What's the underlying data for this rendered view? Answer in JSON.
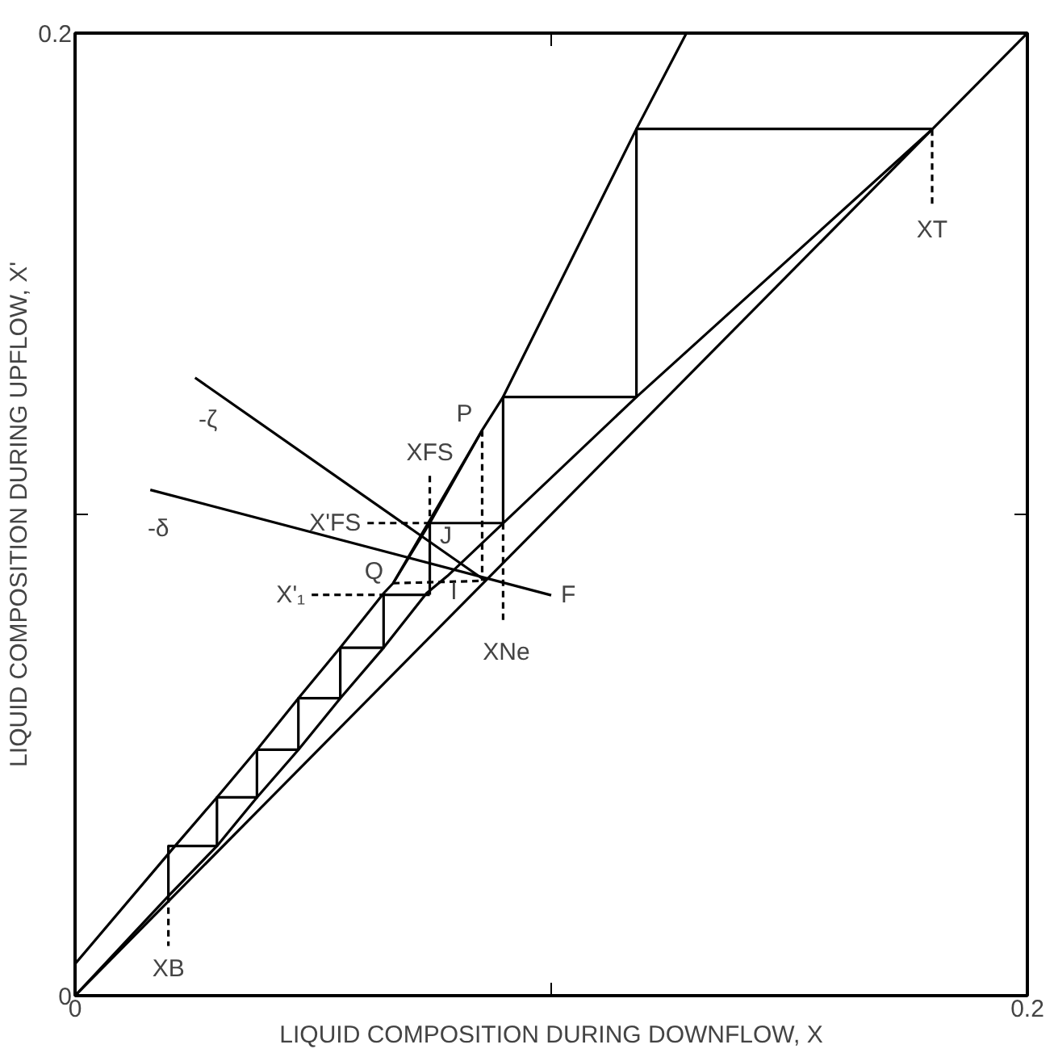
{
  "chart_data": {
    "type": "line",
    "xlabel": "LIQUID COMPOSITION DURING DOWNFLOW, X",
    "ylabel": "LIQUID COMPOSITION DURING UPFLOW, X'",
    "xlim": [
      0,
      0.2
    ],
    "ylim": [
      0,
      0.2
    ],
    "xticks": [
      0,
      {
        "value": 0.1,
        "label": null
      },
      {
        "value": 0.2,
        "label": "0.2"
      }
    ],
    "yticks": [
      0,
      {
        "value": 0.1,
        "label": null
      },
      {
        "value": 0.2,
        "label": "0.2"
      }
    ],
    "grid": false,
    "series": [
      {
        "color": "#000000",
        "x": [
          0,
          0.2
        ],
        "values": [
          0,
          0.2
        ]
      },
      {
        "color": "#000000",
        "x": [
          0,
          0.0196,
          0.0298,
          0.0382,
          0.0469,
          0.0557,
          0.0648,
          0.0738,
          0.0782,
          0.1179,
          0.18
        ],
        "values": [
          0,
          0.0207,
          0.0311,
          0.0412,
          0.0511,
          0.0618,
          0.0723,
          0.0836,
          0.0872,
          0.1244,
          0.18
        ]
      },
      {
        "color": "#000000",
        "x": [
          0,
          0.021,
          0.0298,
          0.0382,
          0.0469,
          0.0557,
          0.0648,
          0.0668,
          0.0745,
          0.0855,
          0.0899,
          0.1179,
          0.1284
        ],
        "values": [
          0.0066,
          0.0311,
          0.0412,
          0.0511,
          0.0618,
          0.0723,
          0.0836,
          0.0857,
          0.0982,
          0.1175,
          0.1244,
          0.1801,
          0.2
        ]
      },
      {
        "color": "#000000",
        "x": [
          0.0668,
          0.0855
        ],
        "values": [
          0.0857,
          0.1175
        ]
      },
      {
        "color": "#000000",
        "x": [
          0.0196,
          0.0196,
          0.0298,
          0.0298,
          0.0382,
          0.0382,
          0.0469,
          0.0469,
          0.0557,
          0.0557,
          0.0648,
          0.0648,
          0.0745
        ],
        "values": [
          0.0207,
          0.0311,
          0.0311,
          0.0412,
          0.0412,
          0.0511,
          0.0511,
          0.0618,
          0.0618,
          0.0723,
          0.0723,
          0.0833,
          0.0833
        ]
      },
      {
        "color": "#000000",
        "x": [
          0.18,
          0.1179,
          0.1179,
          0.0899,
          0.0899,
          0.0745,
          0.0745
        ],
        "values": [
          0.1801,
          0.1801,
          0.1244,
          0.1244,
          0.0982,
          0.0982,
          0.0833
        ]
      },
      {
        "color": "#000000",
        "x": [
          0.0252,
          0.0862
        ],
        "values": [
          0.1284,
          0.0862
        ]
      },
      {
        "color": "#000000",
        "x": [
          0.0158,
          0.1
        ],
        "values": [
          0.1051,
          0.0832
        ]
      },
      {
        "color": "#000000",
        "line_style": "dashed",
        "x": [
          0.18,
          0.18
        ],
        "values": [
          0.18,
          0.1638
        ]
      },
      {
        "color": "#000000",
        "line_style": "dashed",
        "x": [
          0.0196,
          0.0196
        ],
        "values": [
          0.0207,
          0.0103
        ]
      },
      {
        "color": "#000000",
        "line_style": "dashed",
        "x": [
          0.0745,
          0.0745
        ],
        "values": [
          0.108,
          0.0982
        ]
      },
      {
        "color": "#000000",
        "line_style": "dashed",
        "x": [
          0.0614,
          0.0745
        ],
        "values": [
          0.0982,
          0.0982
        ]
      },
      {
        "color": "#000000",
        "line_style": "dashed",
        "x": [
          0.0497,
          0.0648
        ],
        "values": [
          0.0833,
          0.0833
        ]
      },
      {
        "color": "#000000",
        "line_style": "dashed",
        "x": [
          0.0668,
          0.0862
        ],
        "values": [
          0.0857,
          0.0862
        ]
      },
      {
        "color": "#000000",
        "line_style": "dashed",
        "x": [
          0.0855,
          0.0855
        ],
        "values": [
          0.1175,
          0.0862
        ]
      },
      {
        "color": "#000000",
        "line_style": "dashed",
        "x": [
          0.0899,
          0.0899
        ],
        "values": [
          0.0982,
          0.0773
        ]
      }
    ],
    "annotations": [
      {
        "text": "XT",
        "x": 0.18,
        "y": 0.1638
      },
      {
        "text": "XB",
        "x": 0.0196,
        "y": 0.0103
      },
      {
        "text": "XFS",
        "x": 0.0745,
        "y": 0.108
      },
      {
        "text": "X'FS",
        "x": 0.0614,
        "y": 0.0982
      },
      {
        "text": "X'₁",
        "x": 0.0497,
        "y": 0.0833
      },
      {
        "text": "Q",
        "x": 0.0668,
        "y": 0.0857
      },
      {
        "text": "P",
        "x": 0.0855,
        "y": 0.1175
      },
      {
        "text": "J",
        "x": 0.0745,
        "y": 0.0982
      },
      {
        "text": "I",
        "x": 0.0782,
        "y": 0.0872
      },
      {
        "text": "F",
        "x": 0.1,
        "y": 0.0832
      },
      {
        "text": "XNe",
        "x": 0.0899,
        "y": 0.0773
      },
      {
        "text": "-ζ",
        "x": 0.0252,
        "y": 0.1284
      },
      {
        "text": "-δ",
        "x": 0.0158,
        "y": 0.1051
      }
    ]
  }
}
